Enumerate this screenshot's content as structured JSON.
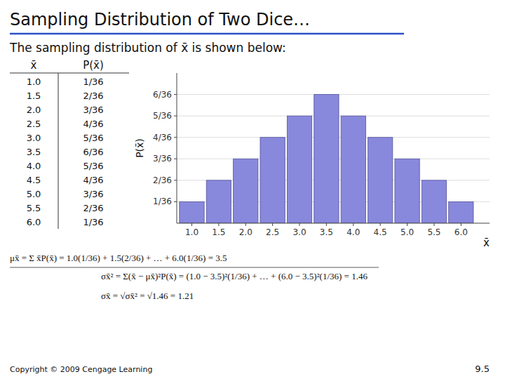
{
  "chart_data": {
    "type": "bar",
    "title": "Sampling Distribution of Two Dice…",
    "subtitle": "The sampling distribution of x̄ is shown below:",
    "x_label": "x̄",
    "y_label": "P(x̄)",
    "x": [
      1.0,
      1.5,
      2.0,
      2.5,
      3.0,
      3.5,
      4.0,
      4.5,
      5.0,
      5.5,
      6.0
    ],
    "values": [
      1,
      2,
      3,
      4,
      5,
      6,
      5,
      4,
      3,
      2,
      1
    ],
    "color": "#8888dd",
    "xlim": [
      0.72,
      6.53
    ],
    "xticks": [
      {
        "value": 1.0,
        "label": "1.0"
      },
      {
        "value": 1.5,
        "label": "1.5"
      },
      {
        "value": 2.0,
        "label": "2.0"
      },
      {
        "value": 2.5,
        "label": "2.5"
      },
      {
        "value": 3.0,
        "label": "3.0"
      },
      {
        "value": 3.5,
        "label": "3.5"
      },
      {
        "value": 4.0,
        "label": "4.0"
      },
      {
        "value": 4.5,
        "label": "4.5"
      },
      {
        "value": 5.0,
        "label": "5.0"
      },
      {
        "value": 5.5,
        "label": "5.5"
      },
      {
        "value": 6.0,
        "label": "6.0"
      }
    ],
    "ylim": [
      0,
      7
    ],
    "yticks": [
      {
        "value": 1,
        "label": "1/36"
      },
      {
        "value": 2,
        "label": "2/36"
      },
      {
        "value": 3,
        "label": "3/36"
      },
      {
        "value": 4,
        "label": "4/36"
      },
      {
        "value": 5,
        "label": "5/36"
      },
      {
        "value": 6,
        "label": "6/36"
      }
    ],
    "grid": true,
    "table": {
      "columns": [
        "x̄",
        "P(x̄)"
      ],
      "rows": [
        [
          "1.0",
          "1/36"
        ],
        [
          "1.5",
          "2/36"
        ],
        [
          "2.0",
          "3/36"
        ],
        [
          "2.5",
          "4/36"
        ],
        [
          "3.0",
          "5/36"
        ],
        [
          "3.5",
          "6/36"
        ],
        [
          "4.0",
          "5/36"
        ],
        [
          "4.5",
          "4/36"
        ],
        [
          "5.0",
          "3/36"
        ],
        [
          "5.5",
          "2/36"
        ],
        [
          "6.0",
          "1/36"
        ]
      ]
    },
    "annotations": [
      "μx̄ = Σ x̄P(x̄) = 1.0(1/36) + 1.5(2/36) + … + 6.0(1/36) = 3.5",
      "σx̄² = Σ(x̄ − μx̄)²P(x̄) = (1.0 − 3.5)²(1/36) + … + (6.0 − 3.5)²(1/36) = 1.46",
      "σx̄ = √σx̄² = √1.46 = 1.21"
    ],
    "source": "Copyright © 2009 Cengage Learning",
    "page": "9.5"
  }
}
